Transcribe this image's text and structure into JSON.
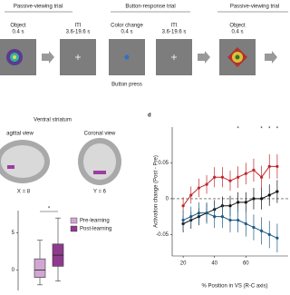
{
  "top": {
    "trials": [
      "Passive-viewing trial",
      "Button-response trial",
      "Passive-viewing trial"
    ],
    "panels": [
      {
        "label": "Object",
        "duration": "0.4 s"
      },
      {
        "label": "ITI",
        "duration": "3.6-19.6 s"
      },
      {
        "label": "Color change",
        "duration": "0.4 s"
      },
      {
        "label": "ITI",
        "duration": "3.6-19.6 s"
      },
      {
        "label": "Object",
        "duration": "0.4 s"
      }
    ],
    "note": "Button press"
  },
  "brain": {
    "title": "Ventral striatum",
    "views": [
      {
        "label": "agittal view",
        "coord": "X = 8"
      },
      {
        "label": "Coronal view",
        "coord": "Y = 6"
      }
    ]
  },
  "chart_data": [
    {
      "type": "box",
      "ylim": [
        -3,
        8
      ],
      "yticks": [
        5,
        0
      ],
      "annotation": "*",
      "series": [
        {
          "name": "Pre-learning",
          "color": "#d2a6d2",
          "min": -2,
          "q1": -1,
          "median": 0,
          "q3": 1.5,
          "max": 4
        },
        {
          "name": "Post-learning",
          "color": "#8e3b8e",
          "min": -1.5,
          "q1": 0.5,
          "median": 2,
          "q3": 3.5,
          "max": 7
        }
      ]
    },
    {
      "type": "line",
      "panel_label": "d",
      "y_label": "Activation change (Post - Pre)",
      "x_label": "% Position in VS (R-C axis)",
      "x": [
        20,
        25,
        30,
        35,
        40,
        45,
        50,
        55,
        60,
        65,
        70,
        75,
        80
      ],
      "xlim": [
        13,
        87
      ],
      "xticks": [
        20,
        40,
        60
      ],
      "ylim": [
        -0.08,
        0.1
      ],
      "yticks": [
        0.05,
        0,
        -0.05
      ],
      "series": [
        {
          "color": "#c0262b",
          "values": [
            -0.01,
            0.005,
            0.015,
            0.02,
            0.03,
            0.03,
            0.025,
            0.03,
            0.035,
            0.04,
            0.03,
            0.045,
            0.045
          ],
          "errors": [
            0.012,
            0.012,
            0.013,
            0.013,
            0.014,
            0.014,
            0.014,
            0.015,
            0.015,
            0.016,
            0.016,
            0.017,
            0.017
          ]
        },
        {
          "color": "#111111",
          "values": [
            -0.035,
            -0.03,
            -0.025,
            -0.02,
            -0.015,
            -0.01,
            -0.01,
            -0.005,
            -0.005,
            0,
            0,
            0.005,
            0.01
          ],
          "errors": [
            0.012,
            0.012,
            0.012,
            0.013,
            0.013,
            0.013,
            0.014,
            0.014,
            0.014,
            0.015,
            0.015,
            0.015,
            0.016
          ]
        },
        {
          "color": "#1d5a85",
          "values": [
            -0.03,
            -0.025,
            -0.02,
            -0.02,
            -0.025,
            -0.025,
            -0.03,
            -0.03,
            -0.035,
            -0.04,
            -0.045,
            -0.05,
            -0.055
          ],
          "errors": [
            0.014,
            0.014,
            0.015,
            0.015,
            0.016,
            0.016,
            0.017,
            0.017,
            0.018,
            0.018,
            0.019,
            0.019,
            0.02
          ]
        }
      ],
      "annotations": [
        {
          "text": "*",
          "x": 55
        },
        {
          "text": "*",
          "x": 70
        },
        {
          "text": "*",
          "x": 75
        },
        {
          "text": "*",
          "x": 80
        }
      ]
    }
  ]
}
